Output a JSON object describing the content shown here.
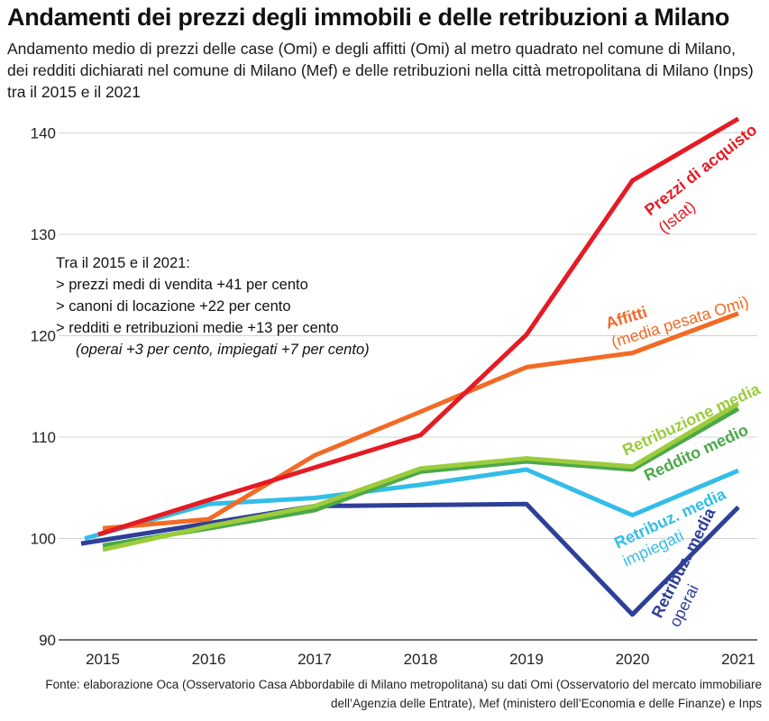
{
  "title": "Andamenti dei prezzi degli immobili e delle retribuzioni a Milano",
  "subtitle": "Andamento medio di prezzi delle case (Omi) e degli affitti (Omi) al metro quadrato nel comune di Milano, dei redditi dichiarati nel comune di Milano (Mef) e delle retribuzioni nella città metropolitana di Milano (Inps) tra il 2015 e il 2021",
  "note": {
    "heading": "Tra il 2015 e il 2021:",
    "lines": [
      "> prezzi medi di vendita +41 per cento",
      "> canoni di locazione +22 per cento",
      "> redditi e retribuzioni medie +13 per cento"
    ],
    "italic": "(operai +3 per cento, impiegati +7 per cento)"
  },
  "source": "Fonte: elaborazione Oca (Osservatorio Casa Abbordabile di Milano metropolitana) su dati Omi (Osservatorio del mercato immobiliare dell’Agenzia delle Entrate), Mef (ministero dell’Economia e delle Finanze) e Inps",
  "chart_data": {
    "type": "line",
    "x": [
      2015,
      2016,
      2017,
      2018,
      2019,
      2020,
      2021
    ],
    "ylim": [
      90,
      142
    ],
    "yticks": [
      90,
      100,
      110,
      120,
      130,
      140
    ],
    "grid": true,
    "series": [
      {
        "name": "Retribuz. media operai",
        "label_lines": [
          "Retribuz. media",
          "operai"
        ],
        "color": "#2e3f99",
        "values": [
          99.5,
          101.5,
          103.2,
          103.3,
          103.4,
          92.5,
          103.1
        ]
      },
      {
        "name": "Retribuz. media impiegati",
        "label_lines": [
          "Retribuz. media",
          "impiegati"
        ],
        "color": "#33bde8",
        "values": [
          100.0,
          103.4,
          104.0,
          105.3,
          106.8,
          102.3,
          106.7
        ]
      },
      {
        "name": "Reddito medio",
        "label_lines": [
          "Reddito medio"
        ],
        "color": "#4ba84a",
        "values": [
          99.3,
          101.0,
          102.8,
          106.6,
          107.6,
          106.8,
          112.8
        ]
      },
      {
        "name": "Retribuzione media",
        "label_lines": [
          "Retribuzione media"
        ],
        "color": "#9ccc3c",
        "values": [
          98.9,
          101.2,
          103.2,
          106.9,
          107.9,
          107.1,
          113.3
        ]
      },
      {
        "name": "Affitti",
        "label_lines": [
          "Affitti",
          "(media pesata Omi)"
        ],
        "color": "#f26a25",
        "values": [
          101.0,
          101.9,
          108.2,
          112.5,
          116.9,
          118.3,
          122.2
        ]
      },
      {
        "name": "Prezzi di acquisto",
        "label_lines": [
          "Prezzi di acquisto",
          "(Istat)"
        ],
        "color": "#e51b24",
        "values": [
          100.4,
          103.8,
          107.0,
          110.2,
          120.1,
          135.3,
          141.4
        ]
      }
    ]
  }
}
